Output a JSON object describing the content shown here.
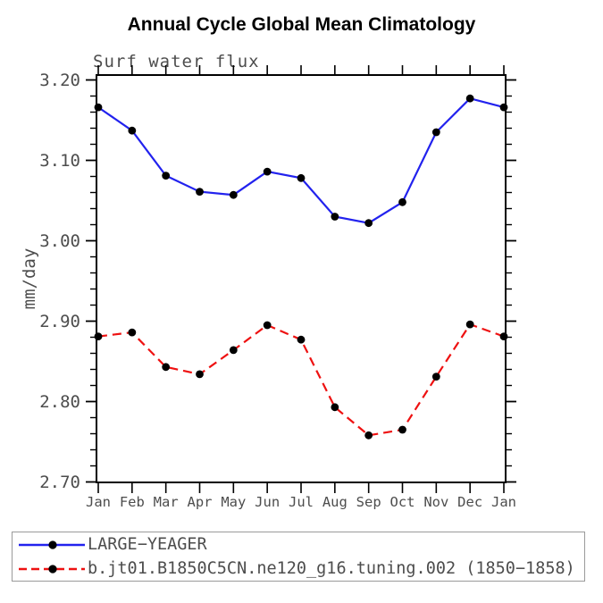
{
  "chart_data": {
    "type": "line",
    "title": "Annual Cycle Global Mean Climatology",
    "subtitle": "Surf water flux",
    "ylabel": "mm/day",
    "categories": [
      "Jan",
      "Feb",
      "Mar",
      "Apr",
      "May",
      "Jun",
      "Jul",
      "Aug",
      "Sep",
      "Oct",
      "Nov",
      "Dec",
      "Jan"
    ],
    "series": [
      {
        "name": "LARGE−YEAGER",
        "color": "#2222ee",
        "style": "solid",
        "marker_color": "#000000",
        "values": [
          3.166,
          3.137,
          3.081,
          3.061,
          3.057,
          3.086,
          3.078,
          3.03,
          3.022,
          3.048,
          3.135,
          3.177,
          3.166
        ]
      },
      {
        "name": "b.jt01.B1850C5CN.ne120_g16.tuning.002 (1850−1858)",
        "color": "#ee1111",
        "style": "dashed",
        "marker_color": "#000000",
        "values": [
          2.881,
          2.886,
          2.843,
          2.834,
          2.864,
          2.895,
          2.877,
          2.793,
          2.758,
          2.765,
          2.831,
          2.896,
          2.881
        ]
      }
    ],
    "ylim": [
      2.7,
      3.2
    ],
    "yticks_major": [
      2.7,
      2.8,
      2.9,
      3.0,
      3.1,
      3.2
    ],
    "ytick_minor_step": 0.02,
    "grid": "off",
    "legend_position": "bottom",
    "axis_color": "#000000",
    "tick_label_color": "#4d4d4d"
  }
}
